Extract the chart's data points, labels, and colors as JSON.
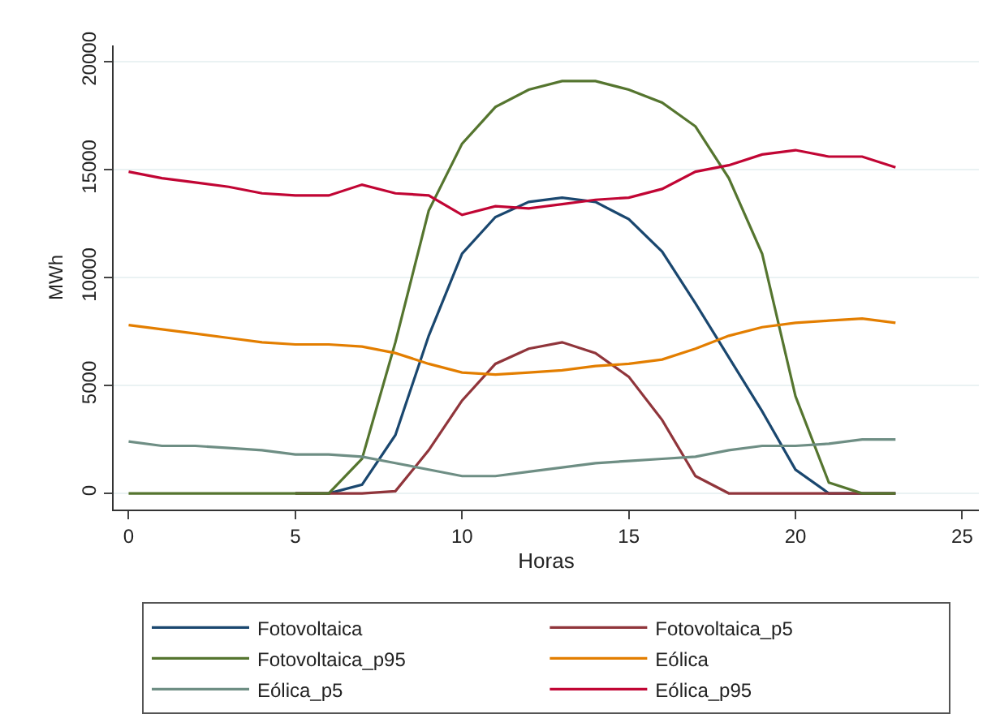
{
  "chart_data": {
    "type": "line",
    "xlabel": "Horas",
    "ylabel": "MWh",
    "x": [
      0,
      1,
      2,
      3,
      4,
      5,
      6,
      7,
      8,
      9,
      10,
      11,
      12,
      13,
      14,
      15,
      16,
      17,
      18,
      19,
      20,
      21,
      22,
      23
    ],
    "series": [
      {
        "name": "Fotovoltaica",
        "color": "#1a476f",
        "values": [
          null,
          null,
          null,
          null,
          null,
          0,
          0,
          400,
          2700,
          7300,
          11100,
          12800,
          13500,
          13700,
          13500,
          12700,
          11200,
          8800,
          6300,
          3800,
          1100,
          0,
          0,
          0
        ]
      },
      {
        "name": "Fotovoltaica_p5",
        "color": "#90353b",
        "values": [
          null,
          null,
          null,
          null,
          null,
          0,
          0,
          0,
          100,
          2000,
          4300,
          6000,
          6700,
          7000,
          6500,
          5400,
          3400,
          800,
          0,
          0,
          0,
          0,
          0,
          0
        ]
      },
      {
        "name": "Fotovoltaica_p95",
        "color": "#55752f",
        "values": [
          0,
          0,
          0,
          0,
          0,
          0,
          0,
          1600,
          7000,
          13100,
          16200,
          17900,
          18700,
          19100,
          19100,
          18700,
          18100,
          17000,
          14600,
          11100,
          4500,
          500,
          0,
          0
        ]
      },
      {
        "name": "Eólica",
        "color": "#e37e00",
        "values": [
          7800,
          7600,
          7400,
          7200,
          7000,
          6900,
          6900,
          6800,
          6500,
          6000,
          5600,
          5500,
          5600,
          5700,
          5900,
          6000,
          6200,
          6700,
          7300,
          7700,
          7900,
          8000,
          8100,
          7900
        ]
      },
      {
        "name": "Eólica_p5",
        "color": "#6e8e84",
        "values": [
          2400,
          2200,
          2200,
          2100,
          2000,
          1800,
          1800,
          1700,
          1400,
          1100,
          800,
          800,
          1000,
          1200,
          1400,
          1500,
          1600,
          1700,
          2000,
          2200,
          2200,
          2300,
          2500,
          2500
        ]
      },
      {
        "name": "Eólica_p95",
        "color": "#c10534",
        "values": [
          14900,
          14600,
          14400,
          14200,
          13900,
          13800,
          13800,
          14300,
          13900,
          13800,
          12900,
          13300,
          13200,
          13400,
          13600,
          13700,
          14100,
          14900,
          15200,
          15700,
          15900,
          15600,
          15600,
          15100
        ]
      }
    ],
    "xlim": [
      -0.45,
      25.5
    ],
    "xticks": [
      0,
      5,
      10,
      15,
      20,
      25
    ],
    "ylim": [
      -750,
      20750
    ],
    "yticks": [
      0,
      5000,
      10000,
      15000,
      20000
    ],
    "grid": "y",
    "legend": "bottom",
    "marker": "none",
    "line_style": "solid"
  }
}
